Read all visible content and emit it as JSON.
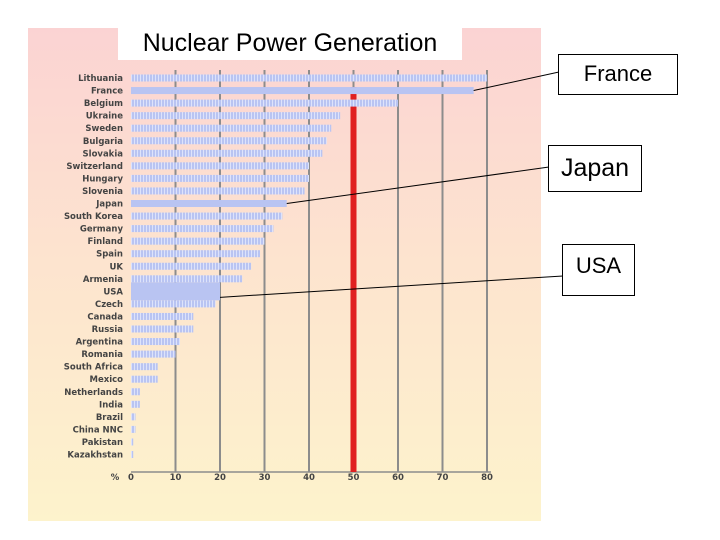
{
  "slide": {
    "title": "Nuclear Power Generation"
  },
  "callouts": {
    "france": "France",
    "japan": "Japan",
    "usa": "USA"
  },
  "colors": {
    "bar": "#b9c4f2",
    "bar_stripe": "#dde3fb",
    "gridline": "#8c8c8c",
    "fifty_percent_line": "#e02020",
    "label_text": "#444444"
  },
  "chart_data": {
    "type": "bar",
    "orientation": "horizontal",
    "title": "Nuclear Power Generation",
    "xlabel": "%",
    "ylabel": "",
    "xlim": [
      0,
      80
    ],
    "x_ticks": [
      0,
      10,
      20,
      30,
      40,
      50,
      60,
      70,
      80
    ],
    "grid": true,
    "highlight_line": {
      "x": 50
    },
    "categories": [
      "Lithuania",
      "France",
      "Belgium",
      "Ukraine",
      "Sweden",
      "Bulgaria",
      "Slovakia",
      "Switzerland",
      "Hungary",
      "Slovenia",
      "Japan",
      "South Korea",
      "Germany",
      "Finland",
      "Spain",
      "UK",
      "Armenia",
      "USA",
      "Czech",
      "Canada",
      "Russia",
      "Argentina",
      "Romania",
      "South Africa",
      "Mexico",
      "Netherlands",
      "India",
      "Brazil",
      "China NNC",
      "Pakistan",
      "Kazakhstan"
    ],
    "values": [
      80,
      77,
      60,
      47,
      45,
      44,
      43,
      40,
      40,
      39,
      35,
      34,
      32,
      30,
      29,
      27,
      25,
      20,
      19,
      14,
      14,
      11,
      10,
      6,
      6,
      2,
      2,
      1,
      1,
      0.5,
      0.5
    ],
    "highlighted": [
      "France",
      "Japan",
      "USA"
    ]
  }
}
